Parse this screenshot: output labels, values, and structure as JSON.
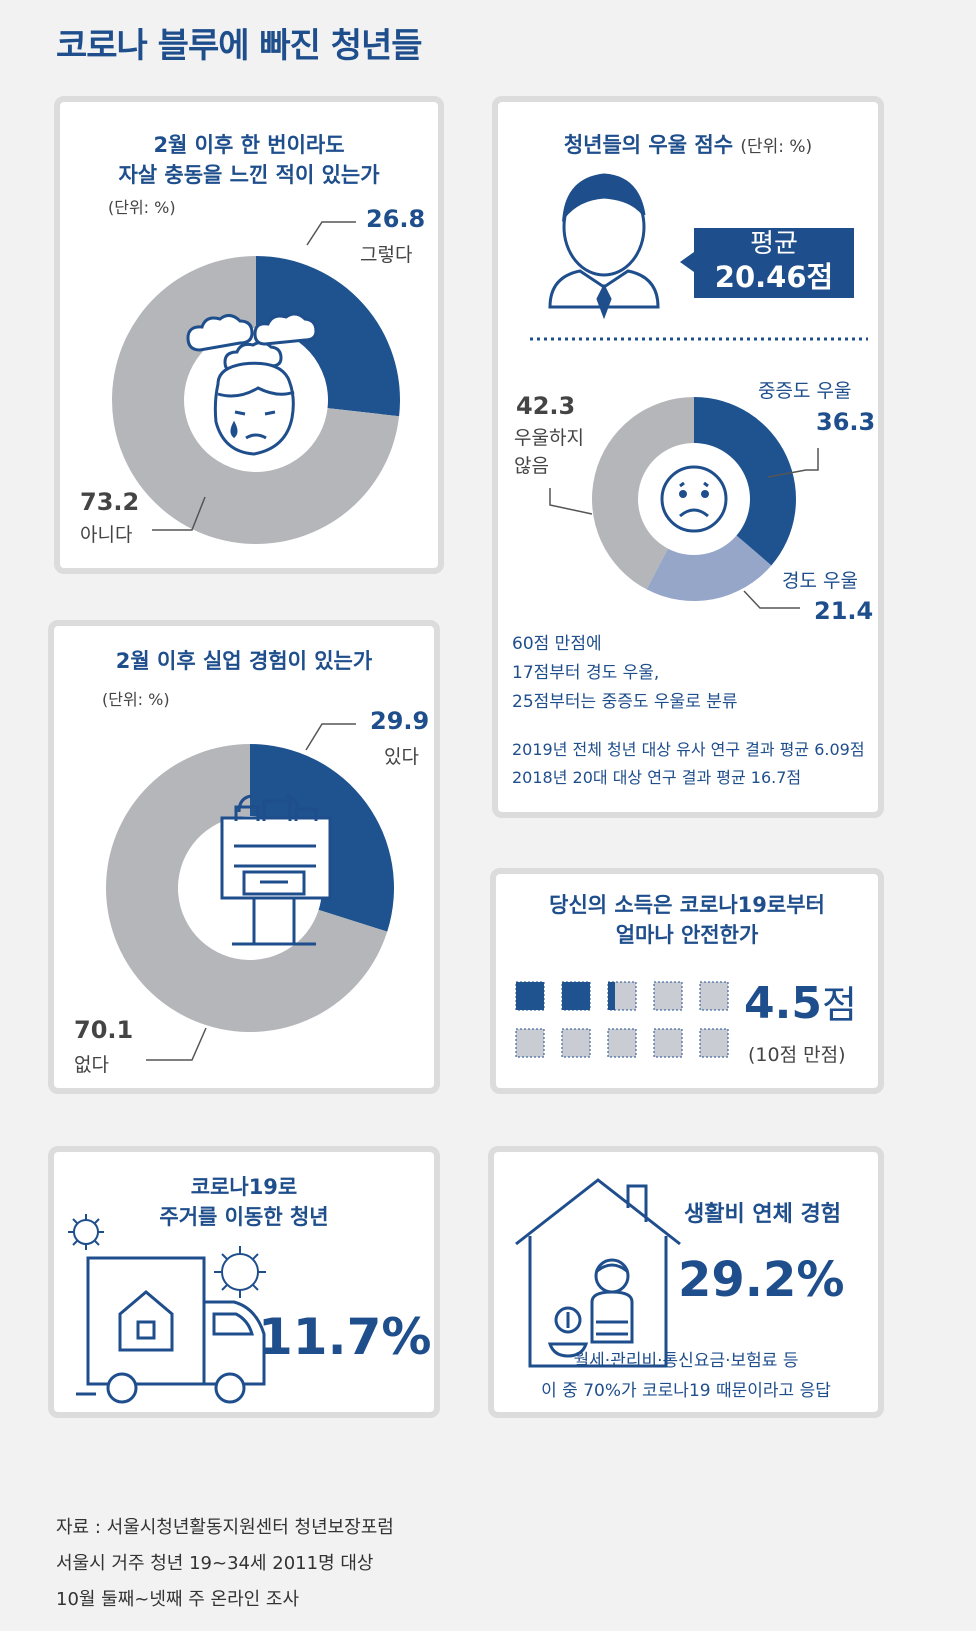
{
  "page_title": "코로나 블루에 빠진 청년들",
  "chart_data": [
    {
      "type": "pie",
      "title_line1": "2월 이후 한 번이라도",
      "title_line2": "자살 충동을 느낀 적이 있는가",
      "unit": "(단위: %)",
      "slices": [
        {
          "label": "그렇다",
          "value": 26.8,
          "color": "#1f5390"
        },
        {
          "label": "아니다",
          "value": 73.2,
          "color": "#b5b6ba"
        }
      ]
    },
    {
      "type": "pie",
      "title": "2월 이후 실업 경험이 있는가",
      "unit": "(단위: %)",
      "slices": [
        {
          "label": "있다",
          "value": 29.9,
          "color": "#1f5390"
        },
        {
          "label": "없다",
          "value": 70.1,
          "color": "#b5b6ba"
        }
      ]
    },
    {
      "type": "pie",
      "title": "청년들의 우울 점수",
      "unit": "(단위: %)",
      "average_label": "평균",
      "average_value": "20.46점",
      "slices": [
        {
          "label": "중증도 우울",
          "value": 36.3,
          "color": "#1f5390"
        },
        {
          "label": "경도 우울",
          "value": 21.4,
          "color": "#96a6c9"
        },
        {
          "label_line1": "우울하지",
          "label_line2": "않음",
          "value": 42.3,
          "color": "#b5b6ba"
        }
      ],
      "note_lines": [
        "60점 만점에",
        "17점부터 경도 우울,",
        "25점부터는 중증도 우울로 분류"
      ],
      "compare_lines": [
        "2019년 전체 청년 대상 유사 연구 결과 평균 6.09점",
        "2018년 20대 대상 연구 결과 평균 16.7점"
      ]
    },
    {
      "type": "bar",
      "title_line1": "당신의 소득은 코로나19로부터",
      "title_line2": "얼마나 안전한가",
      "value": 4.5,
      "max": 10,
      "score_num": "4.5",
      "score_unit": "점",
      "scale_note": "(10점 만점)"
    }
  ],
  "moved": {
    "title_line1": "코로나19로",
    "title_line2": "주거를 이동한 청년",
    "value": "11.7%"
  },
  "arrears": {
    "title": "생활비 연체 경험",
    "value": "29.2%",
    "note_line1": "월세·관리비·통신요금·보험료 등",
    "note_line2": "이 중 70%가 코로나19 때문이라고 응답"
  },
  "source_lines": [
    "자료 : 서울시청년활동지원센터 청년보장포럼",
    "서울시 거주 청년 19~34세 2011명 대상",
    "10월 둘째~넷째 주 온라인 조사"
  ],
  "colors": {
    "navy": "#1f5390",
    "light": "#96a6c9",
    "gray": "#b5b6ba"
  },
  "icons": [
    "worried-person-icon",
    "job-loss-box-icon",
    "man-icon",
    "sad-face-icon",
    "moving-truck-icon",
    "virus-icon",
    "house-coin-icon"
  ]
}
